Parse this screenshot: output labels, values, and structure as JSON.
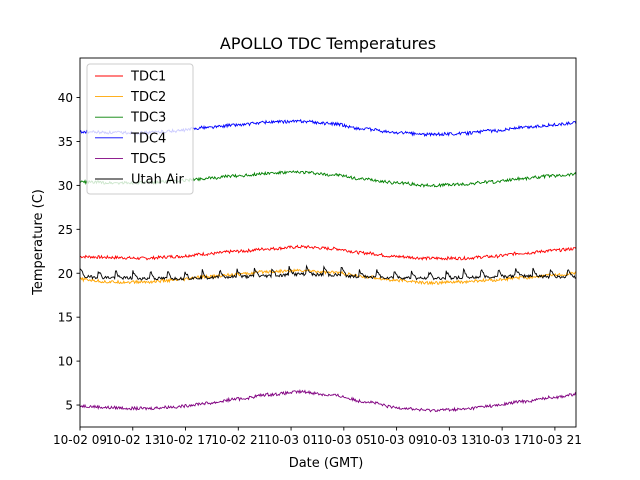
{
  "chart_data": {
    "type": "line",
    "title": "APOLLO TDC Temperatures",
    "xlabel": "Date (GMT)",
    "ylabel": "Temperature (C)",
    "xlim": [
      0,
      47
    ],
    "ylim": [
      2.5,
      44.5
    ],
    "grid": false,
    "legend": "top-left",
    "x_ticks": [
      {
        "x": 0,
        "label": "10-02 09"
      },
      {
        "x": 5,
        "label": "10-02 13"
      },
      {
        "x": 10,
        "label": "10-02 17"
      },
      {
        "x": 15,
        "label": "10-02 21"
      },
      {
        "x": 20,
        "label": "10-03 01"
      },
      {
        "x": 25,
        "label": "10-03 05"
      },
      {
        "x": 30,
        "label": "10-03 09"
      },
      {
        "x": 35,
        "label": "10-03 13"
      },
      {
        "x": 40,
        "label": "10-03 17"
      },
      {
        "x": 45,
        "label": "10-03 21"
      }
    ],
    "y_ticks": [
      {
        "y": 5,
        "label": "5"
      },
      {
        "y": 10,
        "label": "10"
      },
      {
        "y": 15,
        "label": "15"
      },
      {
        "y": 20,
        "label": "20"
      },
      {
        "y": 25,
        "label": "25"
      },
      {
        "y": 30,
        "label": "30"
      },
      {
        "y": 35,
        "label": "35"
      },
      {
        "y": 40,
        "label": "40"
      }
    ],
    "x": [
      0,
      3,
      6,
      9,
      12,
      15,
      18,
      21,
      24,
      27,
      30,
      33,
      36,
      39,
      42,
      45,
      47
    ],
    "series": [
      {
        "name": "TDC1",
        "color": "#ff0000",
        "values": [
          21.9,
          21.8,
          21.7,
          21.9,
          22.2,
          22.5,
          22.8,
          23.0,
          22.8,
          22.3,
          21.9,
          21.7,
          21.7,
          21.9,
          22.3,
          22.6,
          22.8
        ]
      },
      {
        "name": "TDC2",
        "color": "#ffa500",
        "values": [
          19.3,
          19.0,
          19.0,
          19.2,
          19.6,
          19.9,
          20.2,
          20.3,
          20.1,
          19.6,
          19.2,
          18.9,
          19.0,
          19.2,
          19.5,
          19.8,
          20.0
        ]
      },
      {
        "name": "TDC3",
        "color": "#008000",
        "values": [
          30.4,
          30.3,
          30.3,
          30.5,
          30.8,
          31.1,
          31.4,
          31.5,
          31.2,
          30.7,
          30.3,
          30.0,
          30.1,
          30.4,
          30.8,
          31.1,
          31.3
        ]
      },
      {
        "name": "TDC4",
        "color": "#0000ff",
        "values": [
          36.1,
          36.0,
          36.0,
          36.2,
          36.6,
          36.9,
          37.2,
          37.3,
          37.0,
          36.4,
          36.0,
          35.8,
          35.9,
          36.2,
          36.6,
          36.9,
          37.1
        ]
      },
      {
        "name": "TDC5",
        "color": "#800080",
        "values": [
          4.9,
          4.7,
          4.6,
          4.8,
          5.2,
          5.7,
          6.2,
          6.5,
          6.1,
          5.4,
          4.7,
          4.4,
          4.5,
          4.9,
          5.4,
          5.9,
          6.2
        ]
      },
      {
        "name": "Utah Air",
        "color": "#000000",
        "values": [
          19.6,
          19.5,
          19.4,
          19.4,
          19.5,
          19.6,
          19.7,
          19.9,
          19.8,
          19.6,
          19.5,
          19.4,
          19.5,
          19.6,
          19.7,
          19.6,
          19.6
        ]
      }
    ]
  }
}
